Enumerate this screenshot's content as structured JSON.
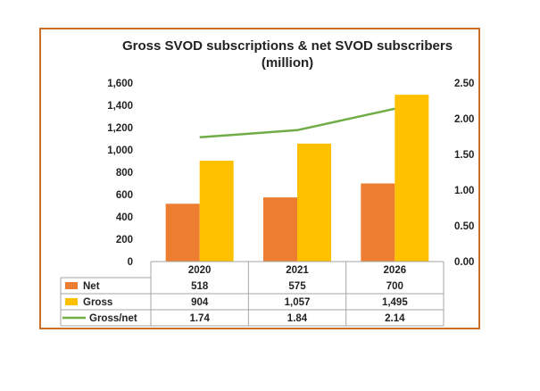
{
  "chart_data": {
    "type": "bar",
    "title": "Gross SVOD subscriptions & net SVOD subscribers",
    "subtitle": "(million)",
    "categories": [
      "2020",
      "2021",
      "2026"
    ],
    "series": [
      {
        "name": "Net",
        "type": "bar",
        "axis": "left",
        "color": "#ed7d31",
        "values": [
          518,
          575,
          700
        ],
        "labels": [
          "518",
          "575",
          "700"
        ]
      },
      {
        "name": "Gross",
        "type": "bar",
        "axis": "left",
        "color": "#ffc000",
        "values": [
          904,
          1057,
          1495
        ],
        "labels": [
          "904",
          "1,057",
          "1,495"
        ]
      },
      {
        "name": "Gross/net",
        "type": "line",
        "axis": "right",
        "color": "#70ad47",
        "values": [
          1.74,
          1.84,
          2.14
        ],
        "labels": [
          "1.74",
          "1.84",
          "2.14"
        ]
      }
    ],
    "y_left": {
      "min": 0,
      "max": 1600,
      "ticks": [
        "0",
        "200",
        "400",
        "600",
        "800",
        "1,000",
        "1,200",
        "1,400",
        "1,600"
      ]
    },
    "y_right": {
      "min": 0,
      "max": 2.5,
      "ticks": [
        "0.00",
        "0.50",
        "1.00",
        "1.50",
        "2.00",
        "2.50"
      ]
    },
    "grid": false,
    "legend": "data-table"
  }
}
